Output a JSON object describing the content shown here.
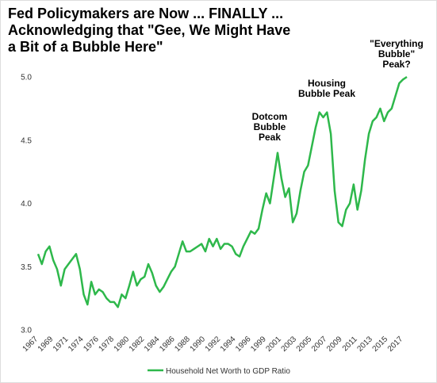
{
  "chart_data": {
    "type": "line",
    "title": [
      "Fed Policymakers are Now ... FINALLY ...",
      "Acknowledging that \"Gee, We Might Have",
      "a Bit of a Bubble Here\""
    ],
    "annotations": [
      {
        "lines": [
          "Dotcom",
          "Bubble",
          "Peak"
        ]
      },
      {
        "lines": [
          "Housing",
          "Bubble Peak"
        ]
      },
      {
        "lines": [
          "\"Everything",
          "Bubble\"",
          "Peak?"
        ]
      }
    ],
    "categories": [
      "1967",
      null,
      null,
      null,
      "1969",
      null,
      null,
      null,
      "1971",
      null,
      null,
      null,
      "1974",
      null,
      null,
      null,
      "1976",
      null,
      null,
      null,
      "1978",
      null,
      null,
      null,
      "1980",
      null,
      null,
      null,
      "1982",
      null,
      null,
      null,
      "1984",
      null,
      null,
      null,
      "1986",
      null,
      null,
      null,
      "1988",
      null,
      null,
      null,
      "1990",
      null,
      null,
      null,
      "1992",
      null,
      null,
      null,
      "1994",
      null,
      null,
      null,
      "1996",
      null,
      null,
      null,
      "1999",
      null,
      null,
      null,
      "2001",
      null,
      null,
      null,
      "2003",
      null,
      null,
      null,
      "2005",
      null,
      null,
      null,
      "2007",
      null,
      null,
      null,
      "2009",
      null,
      null,
      null,
      "2011",
      null,
      null,
      null,
      "2013",
      null,
      null,
      null,
      "2015",
      null,
      null,
      null,
      "2017",
      null
    ],
    "series": [
      {
        "name": "Household Net Worth to GDP Ratio",
        "color": "#2eb84b",
        "values": [
          3.6,
          3.52,
          3.62,
          3.66,
          3.55,
          3.48,
          3.35,
          3.48,
          3.52,
          3.56,
          3.6,
          3.48,
          3.28,
          3.2,
          3.38,
          3.28,
          3.32,
          3.3,
          3.25,
          3.22,
          3.22,
          3.18,
          3.28,
          3.25,
          3.35,
          3.46,
          3.35,
          3.4,
          3.42,
          3.52,
          3.45,
          3.35,
          3.3,
          3.34,
          3.4,
          3.46,
          3.5,
          3.6,
          3.7,
          3.62,
          3.62,
          3.64,
          3.66,
          3.68,
          3.62,
          3.72,
          3.66,
          3.72,
          3.64,
          3.68,
          3.68,
          3.66,
          3.6,
          3.58,
          3.66,
          3.72,
          3.78,
          3.76,
          3.8,
          3.95,
          4.08,
          4.0,
          4.2,
          4.4,
          4.2,
          4.05,
          4.12,
          3.85,
          3.92,
          4.1,
          4.25,
          4.3,
          4.45,
          4.6,
          4.72,
          4.68,
          4.72,
          4.55,
          4.1,
          3.85,
          3.82,
          3.95,
          4.0,
          4.15,
          3.95,
          4.1,
          4.35,
          4.55,
          4.65,
          4.68,
          4.75,
          4.65,
          4.72,
          4.75,
          4.85,
          4.95,
          4.98,
          5.0
        ]
      }
    ],
    "ylim": [
      3.0,
      5.0
    ],
    "yticks": [
      {
        "value": 3.0,
        "label": "3.0"
      },
      {
        "value": 3.5,
        "label": "3.5"
      },
      {
        "value": 4.0,
        "label": "4.0"
      },
      {
        "value": 4.5,
        "label": "4.5"
      },
      {
        "value": 5.0,
        "label": "5.0"
      }
    ],
    "grid": false,
    "legend": "bottom"
  }
}
